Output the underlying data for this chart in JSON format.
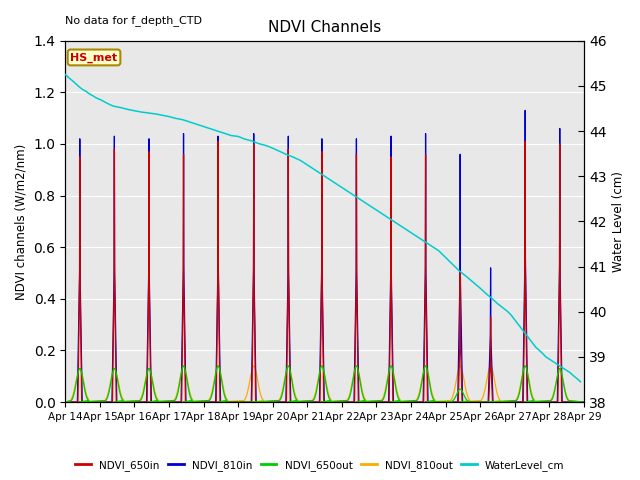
{
  "title": "NDVI Channels",
  "no_data_text": "No data for f_depth_CTD",
  "hs_met_label": "HS_met",
  "ylabel_left": "NDVI channels (W/m2/nm)",
  "ylabel_right": "Water Level (cm)",
  "ylim_left": [
    0.0,
    1.4
  ],
  "ylim_right": [
    38.0,
    46.0
  ],
  "background_color": "#e8e8e8",
  "colors": {
    "NDVI_650in": "#cc0000",
    "NDVI_810in": "#0000cc",
    "NDVI_650out": "#00cc00",
    "NDVI_810out": "#ffaa00",
    "WaterLevel_cm": "#00cccc"
  },
  "peak_days": [
    14.42,
    15.42,
    16.42,
    17.42,
    18.42,
    19.45,
    20.45,
    21.42,
    22.42,
    23.42,
    24.42,
    25.42,
    26.3,
    27.3,
    28.3
  ],
  "peak_heights_650in": [
    0.95,
    0.98,
    0.97,
    0.96,
    1.01,
    1.0,
    0.98,
    0.97,
    0.96,
    0.95,
    0.96,
    0.5,
    0.33,
    1.01,
    1.0
  ],
  "peak_heights_810in": [
    1.02,
    1.03,
    1.02,
    1.04,
    1.03,
    1.04,
    1.03,
    1.02,
    1.02,
    1.03,
    1.04,
    0.96,
    0.52,
    1.13,
    1.06
  ],
  "peak_heights_650out": [
    0.13,
    0.13,
    0.13,
    0.14,
    0.14,
    0.0,
    0.14,
    0.14,
    0.14,
    0.14,
    0.14,
    0.05,
    0.0,
    0.14,
    0.13
  ],
  "peak_heights_810out": [
    0.13,
    0.13,
    0.13,
    0.14,
    0.14,
    0.14,
    0.14,
    0.14,
    0.14,
    0.14,
    0.14,
    0.14,
    0.14,
    0.14,
    0.12
  ],
  "water_level_x": [
    14.0,
    14.05,
    14.1,
    14.15,
    14.2,
    14.3,
    14.4,
    14.5,
    14.6,
    14.7,
    14.8,
    14.9,
    15.0,
    15.1,
    15.2,
    15.3,
    15.4,
    15.6,
    15.8,
    16.0,
    16.2,
    16.4,
    16.6,
    16.8,
    17.0,
    17.2,
    17.4,
    17.6,
    17.8,
    18.0,
    18.2,
    18.4,
    18.6,
    18.8,
    19.0,
    19.1,
    19.2,
    19.3,
    19.4,
    19.5,
    19.6,
    19.8,
    20.0,
    20.2,
    20.4,
    20.6,
    20.8,
    21.0,
    21.2,
    21.4,
    21.6,
    21.8,
    22.0,
    22.2,
    22.4,
    22.6,
    22.8,
    23.0,
    23.2,
    23.4,
    23.6,
    23.8,
    24.0,
    24.2,
    24.4,
    24.6,
    24.8,
    25.0,
    25.2,
    25.4,
    25.6,
    25.8,
    26.0,
    26.1,
    26.2,
    26.3,
    26.4,
    26.5,
    26.6,
    26.7,
    26.8,
    26.9,
    27.0,
    27.1,
    27.2,
    27.3,
    27.4,
    27.5,
    27.6,
    27.7,
    27.8,
    27.9,
    28.0,
    28.1,
    28.2,
    28.3,
    28.4,
    28.5,
    28.6,
    28.7,
    28.8,
    28.9
  ],
  "water_level_y": [
    45.25,
    45.22,
    45.18,
    45.15,
    45.12,
    45.05,
    44.98,
    44.92,
    44.88,
    44.82,
    44.78,
    44.73,
    44.7,
    44.66,
    44.62,
    44.58,
    44.55,
    44.52,
    44.48,
    44.45,
    44.42,
    44.4,
    44.38,
    44.35,
    44.32,
    44.28,
    44.25,
    44.2,
    44.15,
    44.1,
    44.05,
    44.0,
    43.95,
    43.9,
    43.88,
    43.85,
    43.82,
    43.8,
    43.78,
    43.75,
    43.72,
    43.68,
    43.62,
    43.55,
    43.48,
    43.42,
    43.35,
    43.25,
    43.15,
    43.05,
    42.95,
    42.85,
    42.75,
    42.65,
    42.55,
    42.45,
    42.35,
    42.25,
    42.15,
    42.05,
    41.95,
    41.85,
    41.75,
    41.65,
    41.55,
    41.45,
    41.35,
    41.2,
    41.05,
    40.9,
    40.78,
    40.65,
    40.52,
    40.45,
    40.38,
    40.32,
    40.25,
    40.18,
    40.12,
    40.06,
    40.0,
    39.92,
    39.82,
    39.72,
    39.62,
    39.52,
    39.42,
    39.32,
    39.22,
    39.15,
    39.08,
    39.0,
    38.95,
    38.9,
    38.85,
    38.8,
    38.75,
    38.7,
    38.65,
    38.58,
    38.52,
    38.45
  ]
}
